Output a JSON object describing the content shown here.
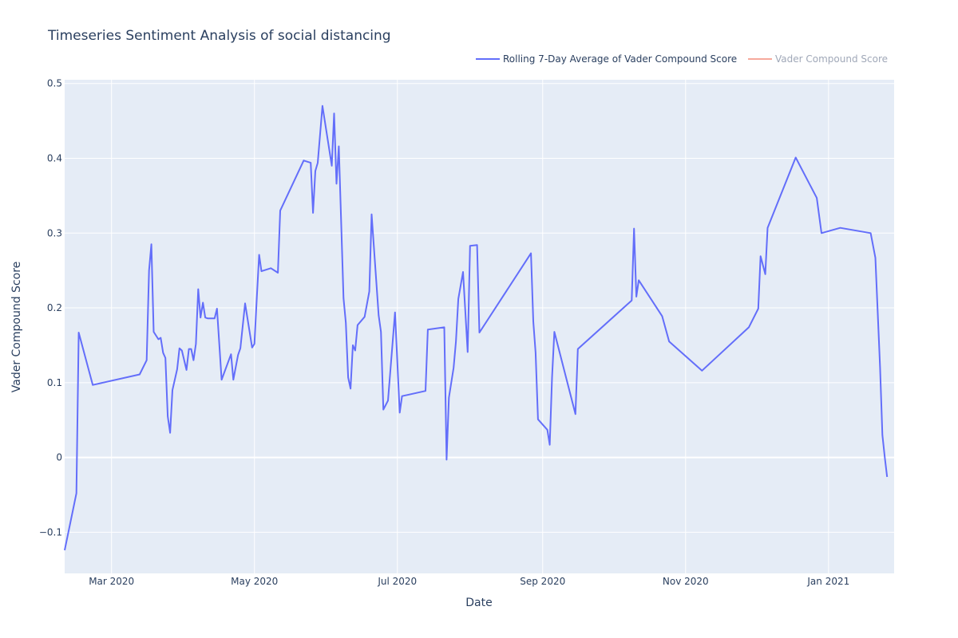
{
  "chart_data": {
    "type": "line",
    "title": "Timeseries Sentiment Analysis of social distancing",
    "xlabel": "Date",
    "ylabel": "Vader Compound Score",
    "x_ticks": [
      "Mar 2020",
      "May 2020",
      "Jul 2020",
      "Sep 2020",
      "Nov 2020",
      "Jan 2021"
    ],
    "y_ticks": [
      "0.5",
      "0.4",
      "0.3",
      "0.2",
      "0.1",
      "0",
      "−0.1"
    ],
    "xlim": [
      "2020-02-10",
      "2021-01-29"
    ],
    "ylim": [
      -0.155,
      0.505
    ],
    "grid": true,
    "legend_position": "top-right",
    "legend": [
      {
        "label": "Rolling 7-Day Average of Vader Compound Score",
        "color": "#636efa",
        "visible": true
      },
      {
        "label": "Vader Compound Score",
        "color": "#ef553b",
        "visible": false
      }
    ],
    "series": [
      {
        "name": "Rolling 7-Day Average of Vader Compound Score",
        "color": "#636efa",
        "points": [
          [
            "2020-02-10",
            -0.124
          ],
          [
            "2020-02-15",
            -0.048
          ],
          [
            "2020-02-16",
            0.167
          ],
          [
            "2020-02-20",
            0.12
          ],
          [
            "2020-02-22",
            0.097
          ],
          [
            "2020-03-13",
            0.111
          ],
          [
            "2020-03-16",
            0.13
          ],
          [
            "2020-03-17",
            0.25
          ],
          [
            "2020-03-18",
            0.285
          ],
          [
            "2020-03-19",
            0.168
          ],
          [
            "2020-03-21",
            0.158
          ],
          [
            "2020-03-22",
            0.16
          ],
          [
            "2020-03-23",
            0.14
          ],
          [
            "2020-03-24",
            0.133
          ],
          [
            "2020-03-25",
            0.055
          ],
          [
            "2020-03-26",
            0.033
          ],
          [
            "2020-03-27",
            0.09
          ],
          [
            "2020-03-29",
            0.118
          ],
          [
            "2020-03-30",
            0.146
          ],
          [
            "2020-03-31",
            0.143
          ],
          [
            "2020-04-02",
            0.117
          ],
          [
            "2020-04-03",
            0.145
          ],
          [
            "2020-04-04",
            0.145
          ],
          [
            "2020-04-05",
            0.13
          ],
          [
            "2020-04-06",
            0.152
          ],
          [
            "2020-04-07",
            0.225
          ],
          [
            "2020-04-08",
            0.187
          ],
          [
            "2020-04-09",
            0.207
          ],
          [
            "2020-04-10",
            0.187
          ],
          [
            "2020-04-11",
            0.186
          ],
          [
            "2020-04-14",
            0.186
          ],
          [
            "2020-04-15",
            0.199
          ],
          [
            "2020-04-17",
            0.104
          ],
          [
            "2020-04-21",
            0.138
          ],
          [
            "2020-04-22",
            0.104
          ],
          [
            "2020-04-24",
            0.137
          ],
          [
            "2020-04-25",
            0.146
          ],
          [
            "2020-04-27",
            0.206
          ],
          [
            "2020-04-30",
            0.147
          ],
          [
            "2020-05-01",
            0.152
          ],
          [
            "2020-05-02",
            0.214
          ],
          [
            "2020-05-03",
            0.271
          ],
          [
            "2020-05-04",
            0.249
          ],
          [
            "2020-05-08",
            0.253
          ],
          [
            "2020-05-11",
            0.247
          ],
          [
            "2020-05-12",
            0.33
          ],
          [
            "2020-05-22",
            0.397
          ],
          [
            "2020-05-25",
            0.394
          ],
          [
            "2020-05-26",
            0.327
          ],
          [
            "2020-05-27",
            0.383
          ],
          [
            "2020-05-28",
            0.394
          ],
          [
            "2020-05-30",
            0.47
          ],
          [
            "2020-06-03",
            0.39
          ],
          [
            "2020-06-04",
            0.46
          ],
          [
            "2020-06-05",
            0.366
          ],
          [
            "2020-06-06",
            0.416
          ],
          [
            "2020-06-08",
            0.213
          ],
          [
            "2020-06-09",
            0.18
          ],
          [
            "2020-06-10",
            0.107
          ],
          [
            "2020-06-11",
            0.092
          ],
          [
            "2020-06-12",
            0.15
          ],
          [
            "2020-06-13",
            0.143
          ],
          [
            "2020-06-14",
            0.177
          ],
          [
            "2020-06-17",
            0.188
          ],
          [
            "2020-06-19",
            0.222
          ],
          [
            "2020-06-20",
            0.325
          ],
          [
            "2020-06-23",
            0.19
          ],
          [
            "2020-06-24",
            0.168
          ],
          [
            "2020-06-25",
            0.064
          ],
          [
            "2020-06-27",
            0.076
          ],
          [
            "2020-06-30",
            0.194
          ],
          [
            "2020-07-02",
            0.06
          ],
          [
            "2020-07-03",
            0.082
          ],
          [
            "2020-07-13",
            0.089
          ],
          [
            "2020-07-14",
            0.171
          ],
          [
            "2020-07-21",
            0.174
          ],
          [
            "2020-07-22",
            -0.003
          ],
          [
            "2020-07-23",
            0.08
          ],
          [
            "2020-07-25",
            0.12
          ],
          [
            "2020-07-26",
            0.155
          ],
          [
            "2020-07-27",
            0.212
          ],
          [
            "2020-07-29",
            0.248
          ],
          [
            "2020-07-31",
            0.141
          ],
          [
            "2020-08-01",
            0.283
          ],
          [
            "2020-08-04",
            0.284
          ],
          [
            "2020-08-05",
            0.167
          ],
          [
            "2020-08-27",
            0.273
          ],
          [
            "2020-08-28",
            0.182
          ],
          [
            "2020-08-29",
            0.14
          ],
          [
            "2020-08-30",
            0.051
          ],
          [
            "2020-09-03",
            0.037
          ],
          [
            "2020-09-04",
            0.017
          ],
          [
            "2020-09-05",
            0.107
          ],
          [
            "2020-09-06",
            0.168
          ],
          [
            "2020-09-15",
            0.058
          ],
          [
            "2020-09-16",
            0.145
          ],
          [
            "2020-10-09",
            0.21
          ],
          [
            "2020-10-10",
            0.306
          ],
          [
            "2020-10-11",
            0.215
          ],
          [
            "2020-10-12",
            0.237
          ],
          [
            "2020-10-22",
            0.189
          ],
          [
            "2020-10-25",
            0.155
          ],
          [
            "2020-11-08",
            0.116
          ],
          [
            "2020-11-28",
            0.174
          ],
          [
            "2020-12-02",
            0.199
          ],
          [
            "2020-12-03",
            0.269
          ],
          [
            "2020-12-05",
            0.245
          ],
          [
            "2020-12-06",
            0.307
          ],
          [
            "2020-12-18",
            0.401
          ],
          [
            "2020-12-27",
            0.347
          ],
          [
            "2020-12-29",
            0.3
          ],
          [
            "2021-01-06",
            0.307
          ],
          [
            "2021-01-19",
            0.3
          ],
          [
            "2021-01-21",
            0.267
          ],
          [
            "2021-01-23",
            0.12
          ],
          [
            "2021-01-24",
            0.03
          ],
          [
            "2021-01-25",
            0.0
          ],
          [
            "2021-01-26",
            -0.026
          ]
        ]
      }
    ]
  }
}
